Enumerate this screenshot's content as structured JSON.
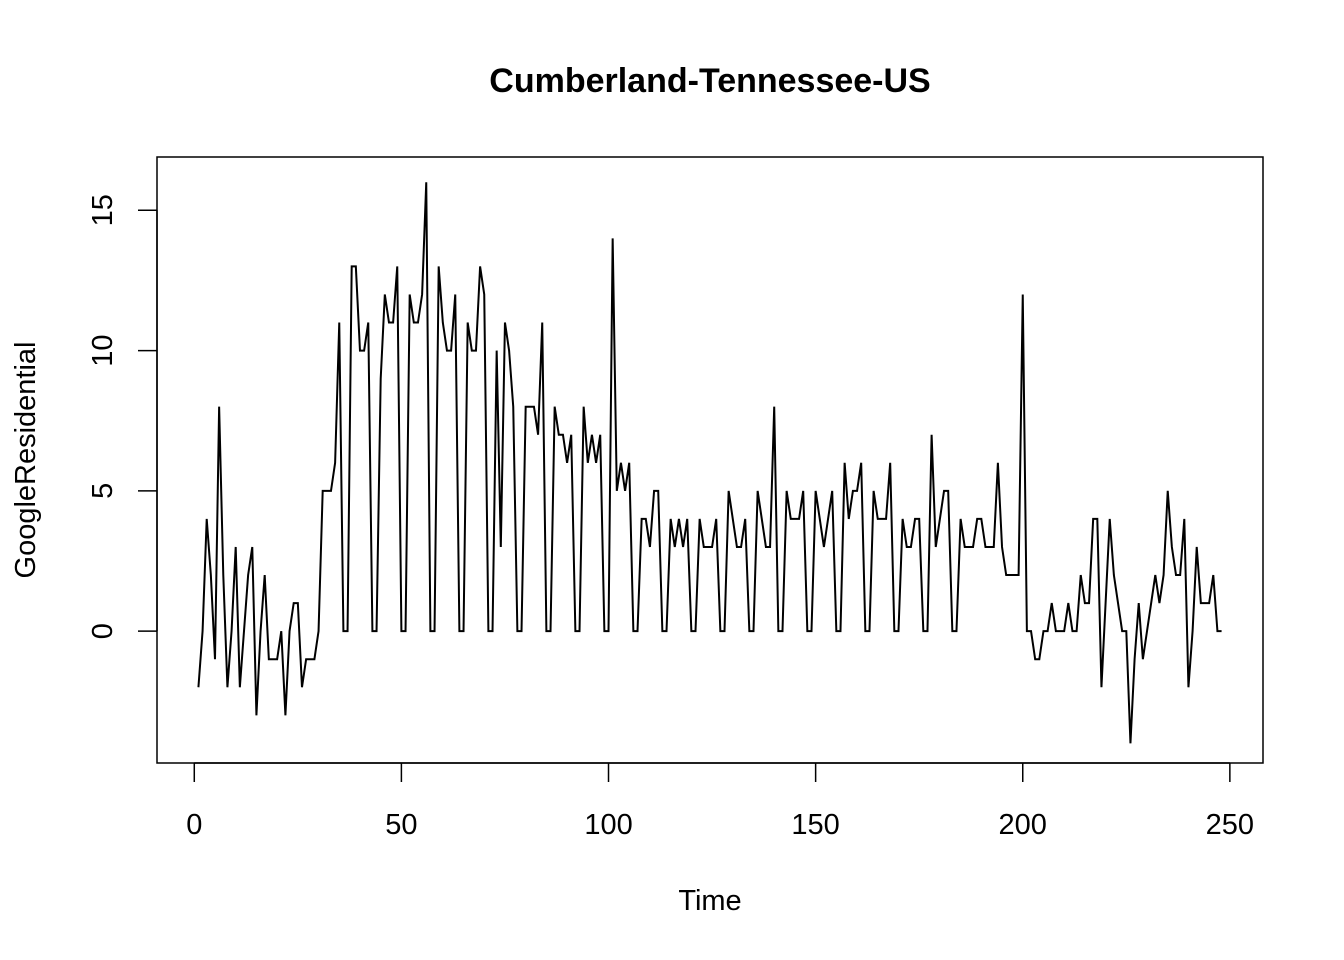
{
  "chart_data": {
    "type": "line",
    "title": "Cumberland-Tennessee-US",
    "xlabel": "Time",
    "ylabel": "GoogleResidential",
    "xlim": [
      -9,
      258
    ],
    "ylim": [
      -4.7,
      16.9
    ],
    "x_ticks": [
      0,
      50,
      100,
      150,
      200,
      250
    ],
    "y_ticks": [
      0,
      5,
      10,
      15
    ],
    "grid": false,
    "line_color": "#000000",
    "x": [
      1,
      2,
      3,
      4,
      5,
      6,
      7,
      8,
      9,
      10,
      11,
      12,
      13,
      14,
      15,
      16,
      17,
      18,
      19,
      20,
      21,
      22,
      23,
      24,
      25,
      26,
      27,
      28,
      29,
      30,
      31,
      32,
      33,
      34,
      35,
      36,
      37,
      38,
      39,
      40,
      41,
      42,
      43,
      44,
      45,
      46,
      47,
      48,
      49,
      50,
      51,
      52,
      53,
      54,
      55,
      56,
      57,
      58,
      59,
      60,
      61,
      62,
      63,
      64,
      65,
      66,
      67,
      68,
      69,
      70,
      71,
      72,
      73,
      74,
      75,
      76,
      77,
      78,
      79,
      80,
      81,
      82,
      83,
      84,
      85,
      86,
      87,
      88,
      89,
      90,
      91,
      92,
      93,
      94,
      95,
      96,
      97,
      98,
      99,
      100,
      101,
      102,
      103,
      104,
      105,
      106,
      107,
      108,
      109,
      110,
      111,
      112,
      113,
      114,
      115,
      116,
      117,
      118,
      119,
      120,
      121,
      122,
      123,
      124,
      125,
      126,
      127,
      128,
      129,
      130,
      131,
      132,
      133,
      134,
      135,
      136,
      137,
      138,
      139,
      140,
      141,
      142,
      143,
      144,
      145,
      146,
      147,
      148,
      149,
      150,
      151,
      152,
      153,
      154,
      155,
      156,
      157,
      158,
      159,
      160,
      161,
      162,
      163,
      164,
      165,
      166,
      167,
      168,
      169,
      170,
      171,
      172,
      173,
      174,
      175,
      176,
      177,
      178,
      179,
      180,
      181,
      182,
      183,
      184,
      185,
      186,
      187,
      188,
      189,
      190,
      191,
      192,
      193,
      194,
      195,
      196,
      197,
      198,
      199,
      200,
      201,
      202,
      203,
      204,
      205,
      206,
      207,
      208,
      209,
      210,
      211,
      212,
      213,
      214,
      215,
      216,
      217,
      218,
      219,
      220,
      221,
      222,
      223,
      224,
      225,
      226,
      227,
      228,
      229,
      230,
      231,
      232,
      233,
      234,
      235,
      236,
      237,
      238,
      239,
      240,
      241,
      242,
      243,
      244,
      245,
      246,
      247,
      248
    ],
    "y": [
      -2,
      0,
      4,
      2,
      -1,
      8,
      2,
      -2,
      0,
      3,
      -2,
      0,
      2,
      3,
      -3,
      0,
      2,
      -1,
      -1,
      -1,
      0,
      -3,
      0,
      1,
      1,
      -2,
      -1,
      -1,
      -1,
      0,
      5,
      5,
      5,
      6,
      11,
      0,
      0,
      13,
      13,
      10,
      10,
      11,
      0,
      0,
      9,
      12,
      11,
      11,
      13,
      0,
      0,
      12,
      11,
      11,
      12,
      16,
      0,
      0,
      13,
      11,
      10,
      10,
      12,
      0,
      0,
      11,
      10,
      10,
      13,
      12,
      0,
      0,
      10,
      3,
      11,
      10,
      8,
      0,
      0,
      8,
      8,
      8,
      7,
      11,
      0,
      0,
      8,
      7,
      7,
      6,
      7,
      0,
      0,
      8,
      6,
      7,
      6,
      7,
      0,
      0,
      14,
      5,
      6,
      5,
      6,
      0,
      0,
      4,
      4,
      3,
      5,
      5,
      0,
      0,
      4,
      3,
      4,
      3,
      4,
      0,
      0,
      4,
      3,
      3,
      3,
      4,
      0,
      0,
      5,
      4,
      3,
      3,
      4,
      0,
      0,
      5,
      4,
      3,
      3,
      8,
      0,
      0,
      5,
      4,
      4,
      4,
      5,
      0,
      0,
      5,
      4,
      3,
      4,
      5,
      0,
      0,
      6,
      4,
      5,
      5,
      6,
      0,
      0,
      5,
      4,
      4,
      4,
      6,
      0,
      0,
      4,
      3,
      3,
      4,
      4,
      0,
      0,
      7,
      3,
      4,
      5,
      5,
      0,
      0,
      4,
      3,
      3,
      3,
      4,
      4,
      3,
      3,
      3,
      6,
      3,
      2,
      2,
      2,
      2,
      12,
      0,
      0,
      -1,
      -1,
      0,
      0,
      1,
      0,
      0,
      0,
      1,
      0,
      0,
      2,
      1,
      1,
      4,
      4,
      -2,
      1,
      4,
      2,
      1,
      0,
      0,
      -4,
      -1,
      1,
      -1,
      0,
      1,
      2,
      1,
      2,
      5,
      3,
      2,
      2,
      4,
      -2,
      0,
      3,
      1,
      1,
      1,
      2,
      0,
      0
    ]
  }
}
